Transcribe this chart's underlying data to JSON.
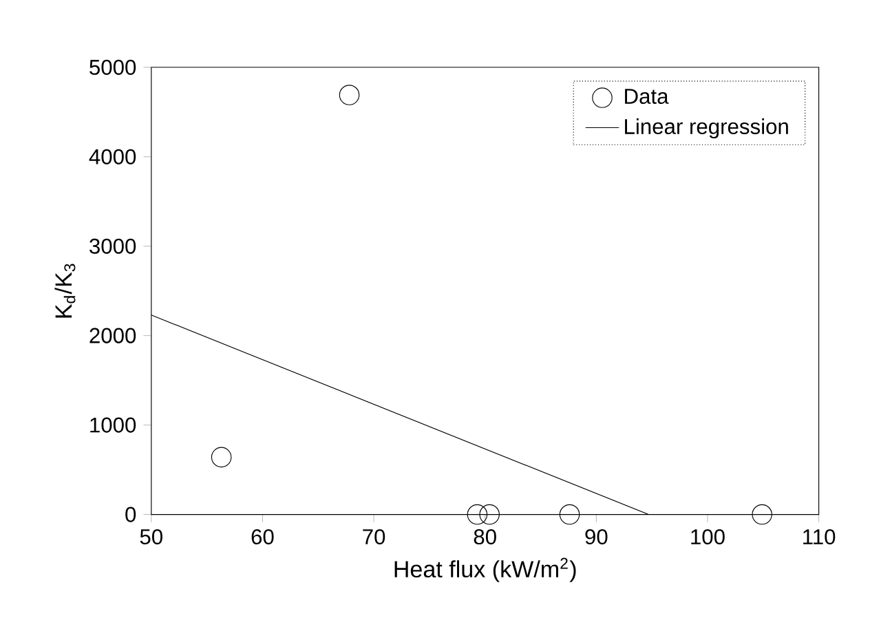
{
  "chart_data": {
    "type": "scatter",
    "xlabel": "Heat flux (kW/m$^{2}$)",
    "ylabel": "K$_{d}$/K$_{3}$",
    "xlim": [
      50,
      110
    ],
    "ylim": [
      0,
      5000
    ],
    "xticks": [
      50,
      60,
      70,
      80,
      90,
      100,
      110
    ],
    "yticks": [
      0,
      1000,
      2000,
      3000,
      4000,
      5000
    ],
    "legend": "top right",
    "grid": false,
    "series": [
      {
        "name": "Data",
        "marker": "circle",
        "color": "#000000",
        "x": [
          56.3,
          67.8,
          79.3,
          80.4,
          87.6,
          104.9
        ],
        "values": [
          640,
          4690,
          0,
          0,
          0,
          0
        ]
      },
      {
        "name": "Linear regression",
        "type": "line",
        "marker": "none",
        "line_style": "solid",
        "color": "#000000",
        "x": [
          50,
          94.7
        ],
        "values": [
          2230,
          0
        ]
      }
    ]
  }
}
